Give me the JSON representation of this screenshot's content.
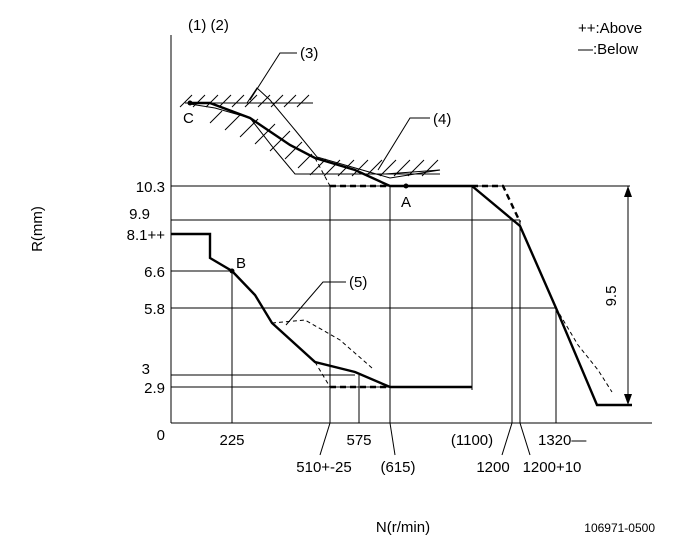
{
  "labels": {
    "callout_1_2": "(1) (2)",
    "callout_3": "(3)",
    "callout_4": "(4)",
    "callout_5": "(5)",
    "legend_above": "++:Above",
    "legend_below": "—:Below",
    "point_a": "A",
    "point_b": "B",
    "point_c": "C",
    "dim_9_5": "9.5",
    "y_axis_title": "R(mm)",
    "x_axis_title": "N(r/min)",
    "figure_id": "106971-0500"
  },
  "y_ticks": {
    "t10_3": "10.3",
    "t9_9": "9.9",
    "t8_1": "8.1++",
    "t6_6": "6.6",
    "t5_8": "5.8",
    "t3": "3",
    "t2_9": "2.9",
    "t0": "0"
  },
  "x_ticks": {
    "t225": "225",
    "t575": "575",
    "t1100": "(1100)",
    "t1320": "1320—",
    "t510": "510+-25",
    "t615": "(615)",
    "t1200": "1200",
    "t1200b": "1200+10"
  }
}
